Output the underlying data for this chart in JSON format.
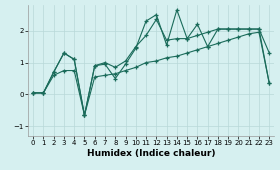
{
  "xlabel": "Humidex (Indice chaleur)",
  "bg_color": "#d6f0f0",
  "grid_color": "#b8d8d8",
  "line_color": "#1a6b5a",
  "xlim": [
    -0.5,
    23.5
  ],
  "ylim": [
    -1.3,
    2.8
  ],
  "yticks": [
    -1,
    0,
    1,
    2
  ],
  "xticks": [
    0,
    1,
    2,
    3,
    4,
    5,
    6,
    7,
    8,
    9,
    10,
    11,
    12,
    13,
    14,
    15,
    16,
    17,
    18,
    19,
    20,
    21,
    22,
    23
  ],
  "lines": [
    {
      "x": [
        0,
        1,
        2,
        3,
        4,
        5,
        6,
        7,
        8,
        9,
        10,
        11,
        12,
        13,
        14,
        15,
        16,
        17,
        18,
        19,
        20,
        21,
        22,
        23
      ],
      "y": [
        0.05,
        0.05,
        0.7,
        1.3,
        1.1,
        -0.65,
        0.9,
        0.95,
        0.5,
        0.95,
        1.45,
        2.3,
        2.5,
        1.55,
        2.65,
        1.75,
        2.2,
        1.5,
        2.05,
        2.05,
        2.05,
        2.05,
        2.05,
        1.3
      ]
    },
    {
      "x": [
        0,
        1,
        2,
        3,
        4,
        5,
        6,
        7,
        8,
        9,
        10,
        11,
        12,
        13,
        14,
        15,
        16,
        17,
        18,
        19,
        20,
        21,
        22,
        23
      ],
      "y": [
        0.05,
        0.05,
        0.7,
        1.3,
        1.1,
        -0.65,
        0.9,
        1.0,
        0.85,
        1.05,
        1.5,
        1.85,
        2.35,
        1.7,
        1.75,
        1.75,
        1.85,
        1.95,
        2.05,
        2.05,
        2.05,
        2.05,
        2.05,
        0.35
      ]
    },
    {
      "x": [
        0,
        1,
        2,
        3,
        4,
        5,
        6,
        7,
        8,
        9,
        10,
        11,
        12,
        13,
        14,
        15,
        16,
        17,
        18,
        19,
        20,
        21,
        22,
        23
      ],
      "y": [
        0.05,
        0.05,
        0.6,
        0.75,
        0.75,
        -0.65,
        0.55,
        0.6,
        0.65,
        0.75,
        0.85,
        1.0,
        1.05,
        1.15,
        1.2,
        1.3,
        1.4,
        1.5,
        1.6,
        1.7,
        1.8,
        1.9,
        1.95,
        0.35
      ]
    }
  ]
}
